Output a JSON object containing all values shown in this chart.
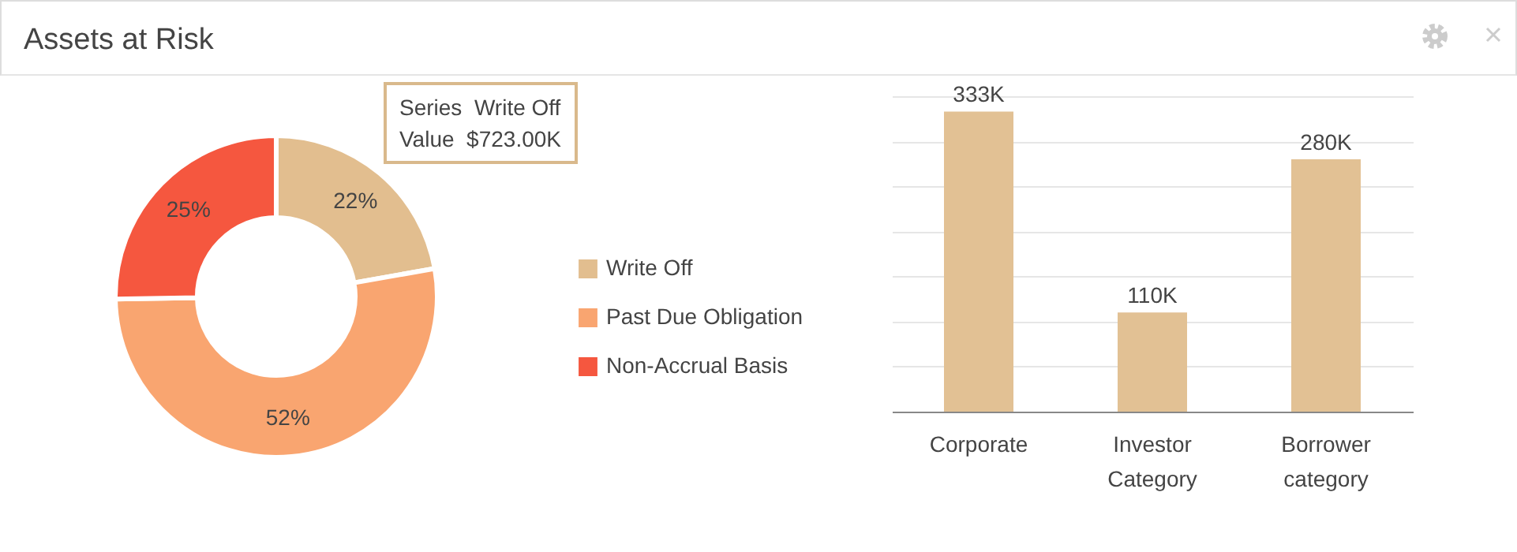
{
  "chart_data": [
    {
      "type": "donut",
      "title": "Assets at Risk",
      "categories": [
        "Write Off",
        "Past Due Obligation",
        "Non-Accrual Basis"
      ],
      "values": [
        22,
        52,
        25
      ],
      "colors": [
        "#e2be8f",
        "#f9a570",
        "#f5573f"
      ],
      "value_labels": [
        "22%",
        "52%",
        "25%"
      ],
      "legend": "right",
      "annotations": [
        "Series  Write Off",
        "Value  $723.00K"
      ]
    },
    {
      "type": "bar",
      "categories": [
        "Corporate",
        "Investor Category",
        "Borrower category"
      ],
      "series": [
        {
          "color": "#e2c194",
          "values": [
            333000,
            110000,
            280000
          ],
          "value_labels": [
            "333K",
            "110K",
            "280K"
          ]
        }
      ],
      "grid": "y",
      "tick_labels": "x"
    }
  ]
}
